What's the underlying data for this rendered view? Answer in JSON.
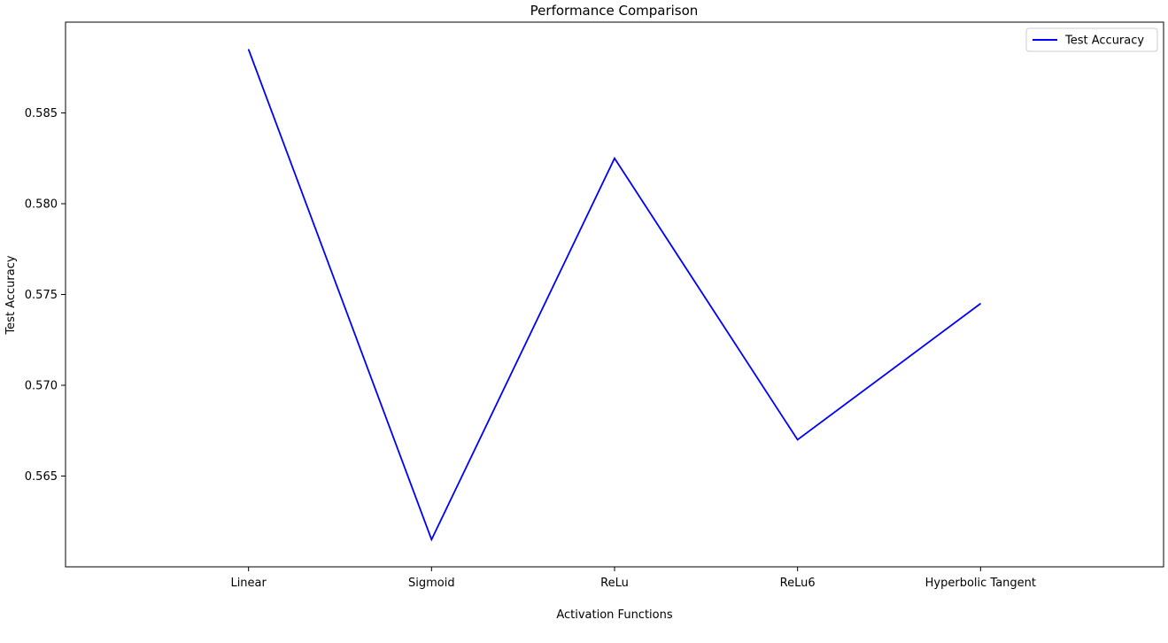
{
  "chart_data": {
    "type": "line",
    "title": "Performance Comparison",
    "xlabel": "Activation Functions",
    "ylabel": "Test Accuracy",
    "categories": [
      "Linear",
      "Sigmoid",
      "ReLu",
      "ReLu6",
      "Hyperbolic Tangent"
    ],
    "series": [
      {
        "name": "Test Accuracy",
        "values": [
          0.5885,
          0.5615,
          0.5825,
          0.567,
          0.5745
        ],
        "color": "#0000ff"
      }
    ],
    "ylim": [
      0.56,
      0.59
    ],
    "xlim": [
      -1,
      5
    ],
    "yticks": [
      0.565,
      0.57,
      0.575,
      0.58,
      0.585
    ],
    "ytick_labels": [
      "0.565",
      "0.570",
      "0.575",
      "0.580",
      "0.585"
    ],
    "grid": false,
    "legend_position": "top-right"
  }
}
